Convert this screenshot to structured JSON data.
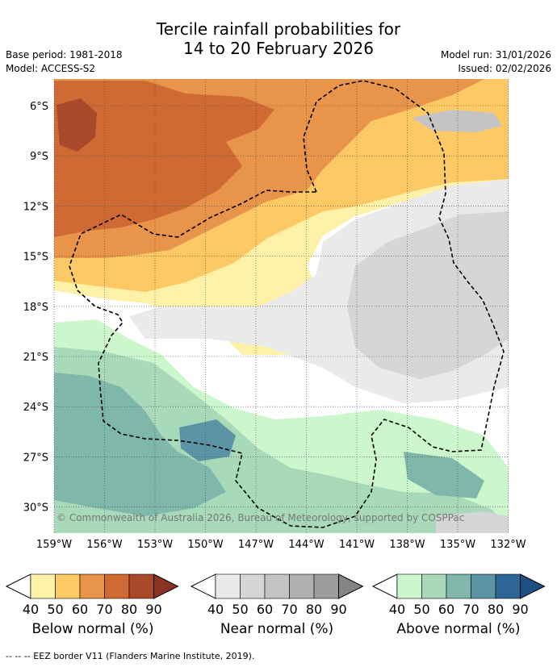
{
  "header": {
    "title_line1": "Tercile rainfall probabilities for",
    "title_line2": "14 to 20 February 2026",
    "base_period": "Base period: 1981-2018",
    "model": "Model: ACCESS-S2",
    "model_run": "Model run: 31/01/2026",
    "issued": "Issued: 02/02/2026"
  },
  "map": {
    "lat_labels": [
      "6°S",
      "9°S",
      "12°S",
      "15°S",
      "18°S",
      "21°S",
      "24°S",
      "27°S",
      "30°S"
    ],
    "lon_labels": [
      "159°W",
      "156°W",
      "153°W",
      "150°W",
      "147°W",
      "144°W",
      "141°W",
      "138°W",
      "135°W",
      "132°W"
    ],
    "credit": "© Commonwealth of Australia 2026, Bureau of Meteorology, supported by COSPPac"
  },
  "legends": [
    {
      "id": "below",
      "title": "Below normal (%)",
      "ticks": [
        "40",
        "50",
        "60",
        "70",
        "80",
        "90"
      ],
      "colors": [
        "#fff2a8",
        "#fdc964",
        "#e8944a",
        "#cf6a35",
        "#a9492a",
        "#8a3320"
      ]
    },
    {
      "id": "near",
      "title": "Near normal (%)",
      "ticks": [
        "40",
        "50",
        "60",
        "70",
        "80",
        "90"
      ],
      "colors": [
        "#eaeaea",
        "#d6d6d6",
        "#c4c4c4",
        "#b0b0b0",
        "#9c9c9c",
        "#848484"
      ]
    },
    {
      "id": "above",
      "title": "Above normal (%)",
      "ticks": [
        "40",
        "50",
        "60",
        "70",
        "80",
        "90"
      ],
      "colors": [
        "#ccf7cc",
        "#a8dab9",
        "#7fb8aa",
        "#5a94a5",
        "#2d6598",
        "#1d4f84"
      ]
    }
  ],
  "footnote": "-- -- -- EEZ border V11 (Flanders Marine Institute, 2019)."
}
